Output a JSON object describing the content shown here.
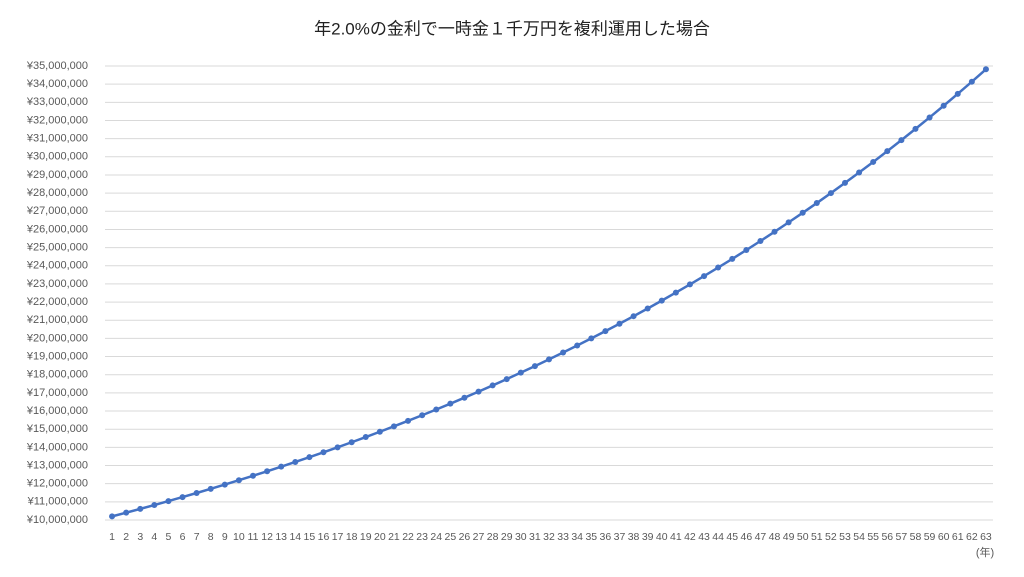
{
  "chart_data": {
    "type": "line",
    "title": "年2.0%の金利で一時金１千万円を複利運用した場合",
    "x_label": "(年)",
    "categories": [
      "1",
      "2",
      "3",
      "4",
      "5",
      "6",
      "7",
      "8",
      "9",
      "10",
      "11",
      "12",
      "13",
      "14",
      "15",
      "16",
      "17",
      "18",
      "19",
      "20",
      "21",
      "22",
      "23",
      "24",
      "25",
      "26",
      "27",
      "28",
      "29",
      "30",
      "31",
      "32",
      "33",
      "34",
      "35",
      "36",
      "37",
      "38",
      "39",
      "40",
      "41",
      "42",
      "43",
      "44",
      "45",
      "46",
      "47",
      "48",
      "49",
      "50",
      "51",
      "52",
      "53",
      "54",
      "55",
      "56",
      "57",
      "58",
      "59",
      "60",
      "61",
      "62",
      "63"
    ],
    "series": [
      {
        "color": "#4472c4",
        "values": [
          10200000,
          10404000,
          10612000,
          10824000,
          11041000,
          11262000,
          11487000,
          11717000,
          11951000,
          12190000,
          12434000,
          12682000,
          12936000,
          13195000,
          13459000,
          13728000,
          14002000,
          14282000,
          14568000,
          14859000,
          15157000,
          15460000,
          15769000,
          16084000,
          16406000,
          16734000,
          17069000,
          17410000,
          17758000,
          18114000,
          18476000,
          18845000,
          19222000,
          19607000,
          19999000,
          20399000,
          20807000,
          21223000,
          21647000,
          22080000,
          22522000,
          22972000,
          23432000,
          23901000,
          24379000,
          24866000,
          25363000,
          25871000,
          26388000,
          26916000,
          27454000,
          28003000,
          28563000,
          29135000,
          29717000,
          30312000,
          30918000,
          31536000,
          32167000,
          32810000,
          33467000,
          34136000,
          34819000
        ]
      }
    ],
    "ylim": [
      10000000,
      35000000
    ],
    "yticks": [
      {
        "value": 10000000,
        "label": "¥10,000,000"
      },
      {
        "value": 11000000,
        "label": "¥11,000,000"
      },
      {
        "value": 12000000,
        "label": "¥12,000,000"
      },
      {
        "value": 13000000,
        "label": "¥13,000,000"
      },
      {
        "value": 14000000,
        "label": "¥14,000,000"
      },
      {
        "value": 15000000,
        "label": "¥15,000,000"
      },
      {
        "value": 16000000,
        "label": "¥16,000,000"
      },
      {
        "value": 17000000,
        "label": "¥17,000,000"
      },
      {
        "value": 18000000,
        "label": "¥18,000,000"
      },
      {
        "value": 19000000,
        "label": "¥19,000,000"
      },
      {
        "value": 20000000,
        "label": "¥20,000,000"
      },
      {
        "value": 21000000,
        "label": "¥21,000,000"
      },
      {
        "value": 22000000,
        "label": "¥22,000,000"
      },
      {
        "value": 23000000,
        "label": "¥23,000,000"
      },
      {
        "value": 24000000,
        "label": "¥24,000,000"
      },
      {
        "value": 25000000,
        "label": "¥25,000,000"
      },
      {
        "value": 26000000,
        "label": "¥26,000,000"
      },
      {
        "value": 27000000,
        "label": "¥27,000,000"
      },
      {
        "value": 28000000,
        "label": "¥28,000,000"
      },
      {
        "value": 29000000,
        "label": "¥29,000,000"
      },
      {
        "value": 30000000,
        "label": "¥30,000,000"
      },
      {
        "value": 31000000,
        "label": "¥31,000,000"
      },
      {
        "value": 32000000,
        "label": "¥32,000,000"
      },
      {
        "value": 33000000,
        "label": "¥33,000,000"
      },
      {
        "value": 34000000,
        "label": "¥34,000,000"
      },
      {
        "value": 35000000,
        "label": "¥35,000,000"
      }
    ],
    "grid": true
  }
}
